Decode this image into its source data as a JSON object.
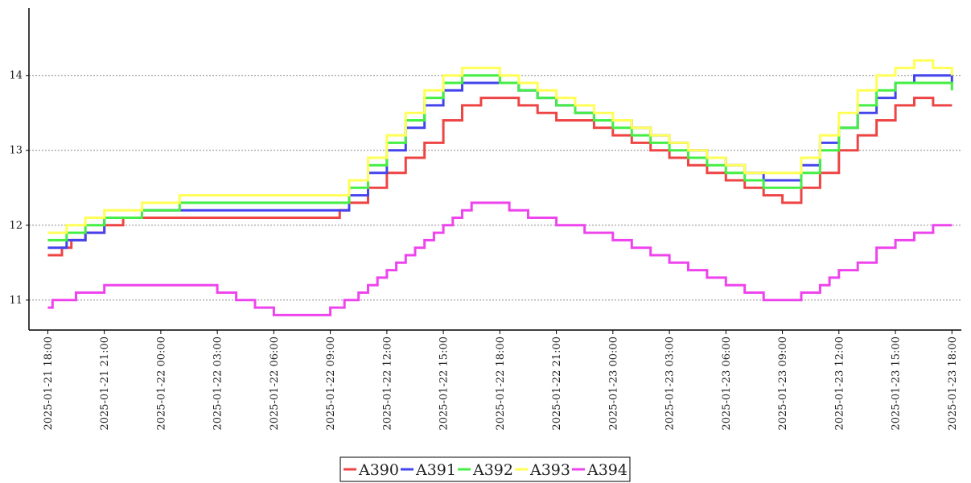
{
  "chart_data": {
    "type": "line",
    "title": "",
    "xlabel": "",
    "ylabel": "",
    "ylim": [
      10.6,
      14.9
    ],
    "xlim": [
      "2025-01-21 17:00",
      "2025-01-23 18:30"
    ],
    "yticks": [
      11,
      12,
      13,
      14
    ],
    "xticks": [
      "2025-01-21 18:00",
      "2025-01-21 21:00",
      "2025-01-22 00:00",
      "2025-01-22 03:00",
      "2025-01-22 06:00",
      "2025-01-22 09:00",
      "2025-01-22 12:00",
      "2025-01-22 15:00",
      "2025-01-22 18:00",
      "2025-01-22 21:00",
      "2025-01-23 00:00",
      "2025-01-23 03:00",
      "2025-01-23 06:00",
      "2025-01-23 09:00",
      "2025-01-23 12:00",
      "2025-01-23 15:00",
      "2025-01-23 18:00"
    ],
    "grid": "horizontal-dotted",
    "legend_position": "bottom-center",
    "series": [
      {
        "name": "A390",
        "color": "#ee4444",
        "x": [
          "2025-01-21 18:00",
          "2025-01-21 18:45",
          "2025-01-21 19:15",
          "2025-01-21 20:00",
          "2025-01-21 21:00",
          "2025-01-21 22:00",
          "2025-01-22 00:00",
          "2025-01-22 03:00",
          "2025-01-22 06:00",
          "2025-01-22 09:00",
          "2025-01-22 09:30",
          "2025-01-22 10:00",
          "2025-01-22 11:00",
          "2025-01-22 12:00",
          "2025-01-22 13:00",
          "2025-01-22 14:00",
          "2025-01-22 15:00",
          "2025-01-22 16:00",
          "2025-01-22 17:00",
          "2025-01-22 18:00",
          "2025-01-22 19:00",
          "2025-01-22 20:00",
          "2025-01-22 21:00",
          "2025-01-22 22:00",
          "2025-01-22 23:00",
          "2025-01-23 00:00",
          "2025-01-23 01:00",
          "2025-01-23 02:00",
          "2025-01-23 03:00",
          "2025-01-23 04:00",
          "2025-01-23 05:00",
          "2025-01-23 06:00",
          "2025-01-23 07:00",
          "2025-01-23 08:00",
          "2025-01-23 09:00",
          "2025-01-23 10:00",
          "2025-01-23 11:00",
          "2025-01-23 12:00",
          "2025-01-23 13:00",
          "2025-01-23 14:00",
          "2025-01-23 15:00",
          "2025-01-23 16:00",
          "2025-01-23 17:00",
          "2025-01-23 18:00"
        ],
        "y": [
          11.6,
          11.7,
          11.8,
          11.9,
          12.0,
          12.1,
          12.1,
          12.1,
          12.1,
          12.1,
          12.2,
          12.3,
          12.5,
          12.7,
          12.9,
          13.1,
          13.4,
          13.6,
          13.7,
          13.7,
          13.6,
          13.5,
          13.4,
          13.4,
          13.3,
          13.2,
          13.1,
          13.0,
          12.9,
          12.8,
          12.7,
          12.6,
          12.5,
          12.4,
          12.3,
          12.5,
          12.7,
          13.0,
          13.2,
          13.4,
          13.6,
          13.7,
          13.6,
          13.6
        ]
      },
      {
        "name": "A391",
        "color": "#4444ee",
        "x": [
          "2025-01-21 18:00",
          "2025-01-21 19:00",
          "2025-01-21 20:00",
          "2025-01-21 21:00",
          "2025-01-21 23:00",
          "2025-01-22 00:00",
          "2025-01-22 03:00",
          "2025-01-22 06:00",
          "2025-01-22 09:00",
          "2025-01-22 10:00",
          "2025-01-22 11:00",
          "2025-01-22 12:00",
          "2025-01-22 13:00",
          "2025-01-22 14:00",
          "2025-01-22 15:00",
          "2025-01-22 16:00",
          "2025-01-22 17:00",
          "2025-01-22 18:00",
          "2025-01-22 19:00",
          "2025-01-22 20:00",
          "2025-01-22 21:00",
          "2025-01-22 22:00",
          "2025-01-22 23:00",
          "2025-01-23 00:00",
          "2025-01-23 01:00",
          "2025-01-23 02:00",
          "2025-01-23 03:00",
          "2025-01-23 04:00",
          "2025-01-23 05:00",
          "2025-01-23 06:00",
          "2025-01-23 07:00",
          "2025-01-23 08:00",
          "2025-01-23 09:00",
          "2025-01-23 10:00",
          "2025-01-23 11:00",
          "2025-01-23 12:00",
          "2025-01-23 13:00",
          "2025-01-23 14:00",
          "2025-01-23 15:00",
          "2025-01-23 16:00",
          "2025-01-23 17:00",
          "2025-01-23 18:00"
        ],
        "y": [
          11.7,
          11.8,
          11.9,
          12.1,
          12.2,
          12.2,
          12.2,
          12.2,
          12.2,
          12.4,
          12.7,
          13.0,
          13.3,
          13.6,
          13.8,
          13.9,
          13.9,
          13.9,
          13.8,
          13.7,
          13.6,
          13.5,
          13.4,
          13.4,
          13.3,
          13.2,
          13.1,
          13.0,
          12.9,
          12.8,
          12.7,
          12.6,
          12.6,
          12.8,
          13.1,
          13.3,
          13.5,
          13.7,
          13.9,
          14.0,
          14.0,
          13.9
        ]
      },
      {
        "name": "A392",
        "color": "#44ee44",
        "x": [
          "2025-01-21 18:00",
          "2025-01-21 19:00",
          "2025-01-21 20:00",
          "2025-01-21 21:00",
          "2025-01-21 23:00",
          "2025-01-22 01:00",
          "2025-01-22 03:00",
          "2025-01-22 06:00",
          "2025-01-22 09:00",
          "2025-01-22 10:00",
          "2025-01-22 11:00",
          "2025-01-22 12:00",
          "2025-01-22 13:00",
          "2025-01-22 14:00",
          "2025-01-22 15:00",
          "2025-01-22 16:00",
          "2025-01-22 17:00",
          "2025-01-22 18:00",
          "2025-01-22 19:00",
          "2025-01-22 20:00",
          "2025-01-22 21:00",
          "2025-01-22 22:00",
          "2025-01-22 23:00",
          "2025-01-23 00:00",
          "2025-01-23 01:00",
          "2025-01-23 02:00",
          "2025-01-23 03:00",
          "2025-01-23 04:00",
          "2025-01-23 05:00",
          "2025-01-23 06:00",
          "2025-01-23 07:00",
          "2025-01-23 08:00",
          "2025-01-23 09:00",
          "2025-01-23 10:00",
          "2025-01-23 11:00",
          "2025-01-23 12:00",
          "2025-01-23 13:00",
          "2025-01-23 14:00",
          "2025-01-23 15:00",
          "2025-01-23 16:00",
          "2025-01-23 17:00",
          "2025-01-23 18:00"
        ],
        "y": [
          11.8,
          11.9,
          12.0,
          12.1,
          12.2,
          12.3,
          12.3,
          12.3,
          12.3,
          12.5,
          12.8,
          13.1,
          13.4,
          13.7,
          13.9,
          14.0,
          14.0,
          13.9,
          13.8,
          13.7,
          13.6,
          13.5,
          13.4,
          13.3,
          13.2,
          13.1,
          13.0,
          12.9,
          12.8,
          12.7,
          12.6,
          12.5,
          12.5,
          12.7,
          13.0,
          13.3,
          13.6,
          13.8,
          13.9,
          13.9,
          13.9,
          13.8
        ]
      },
      {
        "name": "A393",
        "color": "#ffff55",
        "x": [
          "2025-01-21 18:00",
          "2025-01-21 19:00",
          "2025-01-21 20:00",
          "2025-01-21 21:00",
          "2025-01-21 23:00",
          "2025-01-22 01:00",
          "2025-01-22 03:00",
          "2025-01-22 06:00",
          "2025-01-22 09:00",
          "2025-01-22 10:00",
          "2025-01-22 11:00",
          "2025-01-22 12:00",
          "2025-01-22 13:00",
          "2025-01-22 14:00",
          "2025-01-22 15:00",
          "2025-01-22 16:00",
          "2025-01-22 17:00",
          "2025-01-22 18:00",
          "2025-01-22 19:00",
          "2025-01-22 20:00",
          "2025-01-22 21:00",
          "2025-01-22 22:00",
          "2025-01-22 23:00",
          "2025-01-23 00:00",
          "2025-01-23 01:00",
          "2025-01-23 02:00",
          "2025-01-23 03:00",
          "2025-01-23 04:00",
          "2025-01-23 05:00",
          "2025-01-23 06:00",
          "2025-01-23 07:00",
          "2025-01-23 08:00",
          "2025-01-23 09:00",
          "2025-01-23 10:00",
          "2025-01-23 11:00",
          "2025-01-23 12:00",
          "2025-01-23 13:00",
          "2025-01-23 14:00",
          "2025-01-23 15:00",
          "2025-01-23 16:00",
          "2025-01-23 17:00",
          "2025-01-23 18:00"
        ],
        "y": [
          11.9,
          12.0,
          12.1,
          12.2,
          12.3,
          12.4,
          12.4,
          12.4,
          12.4,
          12.6,
          12.9,
          13.2,
          13.5,
          13.8,
          14.0,
          14.1,
          14.1,
          14.0,
          13.9,
          13.8,
          13.7,
          13.6,
          13.5,
          13.4,
          13.3,
          13.2,
          13.1,
          13.0,
          12.9,
          12.8,
          12.7,
          12.7,
          12.7,
          12.9,
          13.2,
          13.5,
          13.8,
          14.0,
          14.1,
          14.2,
          14.1,
          14.0
        ]
      },
      {
        "name": "A394",
        "color": "#ee44ee",
        "x": [
          "2025-01-21 18:00",
          "2025-01-21 18:15",
          "2025-01-21 19:30",
          "2025-01-21 21:00",
          "2025-01-22 00:00",
          "2025-01-22 03:00",
          "2025-01-22 04:00",
          "2025-01-22 05:00",
          "2025-01-22 06:00",
          "2025-01-22 07:00",
          "2025-01-22 08:00",
          "2025-01-22 09:00",
          "2025-01-22 09:45",
          "2025-01-22 10:30",
          "2025-01-22 11:00",
          "2025-01-22 11:30",
          "2025-01-22 12:00",
          "2025-01-22 12:30",
          "2025-01-22 13:00",
          "2025-01-22 13:30",
          "2025-01-22 14:00",
          "2025-01-22 14:30",
          "2025-01-22 15:00",
          "2025-01-22 15:30",
          "2025-01-22 16:00",
          "2025-01-22 16:30",
          "2025-01-22 17:00",
          "2025-01-22 18:00",
          "2025-01-22 18:30",
          "2025-01-22 19:30",
          "2025-01-22 21:00",
          "2025-01-22 22:30",
          "2025-01-23 00:00",
          "2025-01-23 01:00",
          "2025-01-23 02:00",
          "2025-01-23 03:00",
          "2025-01-23 04:00",
          "2025-01-23 05:00",
          "2025-01-23 06:00",
          "2025-01-23 07:00",
          "2025-01-23 08:00",
          "2025-01-23 09:00",
          "2025-01-23 10:00",
          "2025-01-23 11:00",
          "2025-01-23 11:30",
          "2025-01-23 12:00",
          "2025-01-23 13:00",
          "2025-01-23 14:00",
          "2025-01-23 15:00",
          "2025-01-23 16:00",
          "2025-01-23 17:00",
          "2025-01-23 18:00"
        ],
        "y": [
          10.9,
          11.0,
          11.1,
          11.2,
          11.2,
          11.1,
          11.0,
          10.9,
          10.8,
          10.8,
          10.8,
          10.9,
          11.0,
          11.1,
          11.2,
          11.3,
          11.4,
          11.5,
          11.6,
          11.7,
          11.8,
          11.9,
          12.0,
          12.1,
          12.2,
          12.3,
          12.3,
          12.3,
          12.2,
          12.1,
          12.0,
          11.9,
          11.8,
          11.7,
          11.6,
          11.5,
          11.4,
          11.3,
          11.2,
          11.1,
          11.0,
          11.0,
          11.1,
          11.2,
          11.3,
          11.4,
          11.5,
          11.7,
          11.8,
          11.9,
          12.0,
          12.0
        ]
      }
    ]
  }
}
